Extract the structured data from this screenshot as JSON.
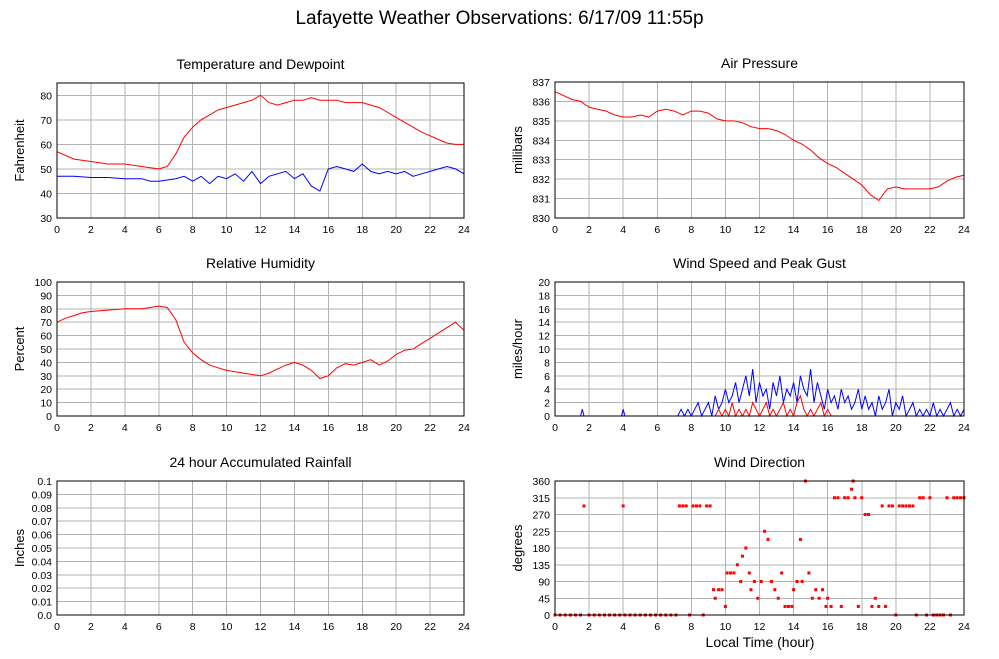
{
  "page": {
    "title": "Lafayette Weather Observations: 6/17/09 11:55p",
    "xlabel": "Local Time (hour)"
  },
  "chart_data": [
    {
      "id": "temp",
      "type": "line",
      "title": "Temperature and Dewpoint",
      "ylabel": "Fahrenheit",
      "xlim": [
        0,
        24
      ],
      "ylim": [
        30,
        85
      ],
      "xticks": [
        0,
        2,
        4,
        6,
        8,
        10,
        12,
        14,
        16,
        18,
        20,
        22,
        24
      ],
      "yticks": [
        30,
        40,
        50,
        60,
        70,
        80
      ],
      "grid": true,
      "series": [
        {
          "color": "#ff0000",
          "x": [
            0,
            1,
            2,
            3,
            4,
            5,
            5.5,
            6,
            6.5,
            7,
            7.5,
            8,
            8.5,
            9,
            9.5,
            10,
            10.5,
            11,
            11.5,
            12,
            12.5,
            13,
            13.5,
            14,
            14.5,
            15,
            15.5,
            16,
            16.5,
            17,
            17.5,
            18,
            18.5,
            19,
            19.5,
            20,
            20.5,
            21,
            21.5,
            22,
            22.5,
            23,
            23.5,
            24
          ],
          "y": [
            57,
            54,
            53,
            52,
            52,
            51,
            50.5,
            50,
            51,
            56,
            63,
            67,
            70,
            72,
            74,
            75,
            76,
            77,
            78,
            80,
            77,
            76,
            77,
            78,
            78,
            79,
            78,
            78,
            78,
            77,
            77,
            77,
            76,
            75,
            73,
            71,
            69,
            67,
            65,
            63.5,
            62,
            60.5,
            60,
            60
          ]
        },
        {
          "color": "#0000ff",
          "x": [
            0,
            1,
            2,
            3,
            4,
            5,
            5.5,
            6,
            6.5,
            7,
            7.5,
            8,
            8.5,
            9,
            9.5,
            10,
            10.5,
            11,
            11.5,
            12,
            12.5,
            13,
            13.5,
            14,
            14.5,
            15,
            15.5,
            16,
            16.5,
            17,
            17.5,
            18,
            18.5,
            19,
            19.5,
            20,
            20.5,
            21,
            21.5,
            22,
            22.5,
            23,
            23.5,
            24
          ],
          "y": [
            47,
            47,
            46.5,
            46.5,
            46,
            46,
            45,
            45,
            45.5,
            46,
            47,
            45,
            47,
            44,
            47,
            46,
            48,
            45,
            49,
            44,
            47,
            48,
            49,
            46,
            48,
            43,
            41,
            50,
            51,
            50,
            49,
            52,
            49,
            48,
            49,
            48,
            49,
            47,
            48,
            49,
            50,
            51,
            50,
            48
          ]
        }
      ]
    },
    {
      "id": "pressure",
      "type": "line",
      "title": "Air Pressure",
      "ylabel": "millibars",
      "xlim": [
        0,
        24
      ],
      "ylim": [
        830,
        837
      ],
      "xticks": [
        0,
        2,
        4,
        6,
        8,
        10,
        12,
        14,
        16,
        18,
        20,
        22,
        24
      ],
      "yticks": [
        830,
        831,
        832,
        833,
        834,
        835,
        836,
        837
      ],
      "grid": true,
      "series": [
        {
          "color": "#ff0000",
          "x": [
            0,
            0.5,
            1,
            1.5,
            2,
            2.5,
            3,
            3.5,
            4,
            4.5,
            5,
            5.5,
            6,
            6.5,
            7,
            7.5,
            8,
            8.5,
            9,
            9.5,
            10,
            10.5,
            11,
            11.5,
            12,
            12.5,
            13,
            13.5,
            14,
            14.5,
            15,
            15.5,
            16,
            16.5,
            17,
            17.5,
            18,
            18.5,
            19,
            19.5,
            20,
            20.5,
            21,
            21.5,
            22,
            22.5,
            23,
            23.5,
            24
          ],
          "y": [
            836.5,
            836.3,
            836.1,
            836.0,
            835.7,
            835.6,
            835.5,
            835.3,
            835.2,
            835.2,
            835.3,
            835.2,
            835.5,
            835.6,
            835.5,
            835.3,
            835.5,
            835.5,
            835.4,
            835.1,
            835.0,
            835.0,
            834.9,
            834.7,
            834.6,
            834.6,
            834.5,
            834.3,
            834.0,
            833.8,
            833.5,
            833.1,
            832.8,
            832.6,
            832.3,
            832.0,
            831.7,
            831.2,
            830.9,
            831.5,
            831.6,
            831.5,
            831.5,
            831.5,
            831.5,
            831.6,
            831.9,
            832.1,
            832.2
          ]
        }
      ]
    },
    {
      "id": "humidity",
      "type": "line",
      "title": "Relative Humidity",
      "ylabel": "Percent",
      "xlim": [
        0,
        24
      ],
      "ylim": [
        0,
        100
      ],
      "xticks": [
        0,
        2,
        4,
        6,
        8,
        10,
        12,
        14,
        16,
        18,
        20,
        22,
        24
      ],
      "yticks": [
        0,
        10,
        20,
        30,
        40,
        50,
        60,
        70,
        80,
        90,
        100
      ],
      "grid": true,
      "series": [
        {
          "color": "#ff0000",
          "x": [
            0,
            0.5,
            1,
            1.5,
            2,
            3,
            4,
            5,
            5.5,
            6,
            6.5,
            7,
            7.5,
            8,
            8.5,
            9,
            9.5,
            10,
            10.5,
            11,
            11.5,
            12,
            12.5,
            13,
            13.5,
            14,
            14.5,
            15,
            15.5,
            16,
            16.5,
            17,
            17.5,
            18,
            18.5,
            19,
            19.5,
            20,
            20.5,
            21,
            21.5,
            22,
            22.5,
            23,
            23.5,
            24
          ],
          "y": [
            70,
            73,
            75,
            77,
            78,
            79,
            80,
            80,
            81,
            82,
            81,
            72,
            55,
            47,
            42,
            38,
            36,
            34,
            33,
            32,
            31,
            30,
            32,
            35,
            38,
            40,
            38,
            34,
            28,
            30,
            36,
            39,
            38,
            40,
            42,
            38,
            41,
            46,
            49,
            50,
            54,
            58,
            62,
            66,
            70,
            64
          ]
        }
      ]
    },
    {
      "id": "wind",
      "type": "line",
      "title": "Wind Speed and Peak Gust",
      "ylabel": "miles/hour",
      "xlim": [
        0,
        24
      ],
      "ylim": [
        0,
        20
      ],
      "xticks": [
        0,
        2,
        4,
        6,
        8,
        10,
        12,
        14,
        16,
        18,
        20,
        22,
        24
      ],
      "yticks": [
        0,
        2,
        4,
        6,
        8,
        10,
        12,
        14,
        16,
        18,
        20
      ],
      "grid": true,
      "series": [
        {
          "color": "#0000ff",
          "x": [
            0,
            1.5,
            1.6,
            1.7,
            3.9,
            4.0,
            4.1,
            7.2,
            7.4,
            7.6,
            7.8,
            8.0,
            8.2,
            8.4,
            8.6,
            8.8,
            9.0,
            9.2,
            9.4,
            9.6,
            9.8,
            10.0,
            10.2,
            10.4,
            10.6,
            10.8,
            11.0,
            11.2,
            11.4,
            11.6,
            11.8,
            12.0,
            12.2,
            12.4,
            12.6,
            12.8,
            13.0,
            13.2,
            13.4,
            13.6,
            13.8,
            14.0,
            14.2,
            14.4,
            14.6,
            14.8,
            15.0,
            15.2,
            15.4,
            15.6,
            15.8,
            16.0,
            16.2,
            16.4,
            16.6,
            16.8,
            17.0,
            17.2,
            17.4,
            17.6,
            17.8,
            18.0,
            18.2,
            18.4,
            18.6,
            18.8,
            19.0,
            19.2,
            19.4,
            19.6,
            19.8,
            20.0,
            20.2,
            20.4,
            20.6,
            20.8,
            21.0,
            21.2,
            21.4,
            21.6,
            21.8,
            22.0,
            22.2,
            22.4,
            22.6,
            22.8,
            23.0,
            23.2,
            23.4,
            23.6,
            23.8,
            24.0
          ],
          "y": [
            0,
            0,
            1,
            0,
            0,
            1,
            0,
            0,
            1,
            0,
            1,
            0,
            1,
            2,
            0,
            1,
            2,
            0,
            3,
            1,
            2,
            4,
            2,
            3,
            5,
            2,
            4,
            6,
            3,
            7,
            2,
            5,
            3,
            4,
            1,
            5,
            3,
            6,
            2,
            4,
            3,
            5,
            2,
            6,
            4,
            3,
            7,
            2,
            5,
            3,
            1,
            4,
            2,
            3,
            1,
            4,
            2,
            3,
            1,
            2,
            4,
            1,
            3,
            1,
            2,
            0,
            3,
            1,
            2,
            4,
            0,
            2,
            1,
            3,
            0,
            1,
            2,
            0,
            1,
            0,
            1,
            0,
            2,
            0,
            1,
            0,
            1,
            2,
            0,
            1,
            0,
            1
          ]
        },
        {
          "color": "#ff0000",
          "x": [
            0,
            9.4,
            9.6,
            9.8,
            10.0,
            10.2,
            10.4,
            10.6,
            10.8,
            11.0,
            11.2,
            11.4,
            11.6,
            11.8,
            12.0,
            12.2,
            12.4,
            12.6,
            12.8,
            13.0,
            13.2,
            13.4,
            13.6,
            13.8,
            14.0,
            14.2,
            14.4,
            14.6,
            14.8,
            15.0,
            15.2,
            15.4,
            15.6,
            15.8,
            16.0,
            16.2,
            24.0
          ],
          "y": [
            0,
            0,
            1,
            0,
            1,
            0,
            2,
            0,
            1,
            0,
            1,
            0,
            2,
            1,
            0,
            1,
            2,
            0,
            1,
            0,
            1,
            2,
            0,
            1,
            0,
            2,
            3,
            1,
            0,
            1,
            0,
            1,
            2,
            0,
            1,
            0,
            0
          ]
        }
      ]
    },
    {
      "id": "rain",
      "type": "line",
      "title": "24 hour Accumulated Rainfall",
      "ylabel": "Inches",
      "xlim": [
        0,
        24
      ],
      "ylim": [
        0,
        0.1
      ],
      "xticks": [
        0,
        2,
        4,
        6,
        8,
        10,
        12,
        14,
        16,
        18,
        20,
        22,
        24
      ],
      "yticks": [
        0.0,
        0.01,
        0.02,
        0.03,
        0.04,
        0.05,
        0.06,
        0.07,
        0.08,
        0.09,
        0.1
      ],
      "ytick_labels": [
        "0.0",
        "0.01",
        "0.02",
        "0.03",
        "0.04",
        "0.05",
        "0.06",
        "0.07",
        "0.08",
        "0.09",
        "0.1"
      ],
      "grid": true,
      "series": [
        {
          "color": "#ff0000",
          "x": [
            0,
            24
          ],
          "y": [
            0,
            0
          ]
        }
      ]
    },
    {
      "id": "direction",
      "type": "scatter",
      "title": "Wind Direction",
      "ylabel": "degrees",
      "xlim": [
        0,
        24
      ],
      "ylim": [
        0,
        360
      ],
      "xticks": [
        0,
        2,
        4,
        6,
        8,
        10,
        12,
        14,
        16,
        18,
        20,
        22,
        24
      ],
      "yticks": [
        0,
        45,
        90,
        135,
        180,
        225,
        270,
        315,
        360
      ],
      "grid": true,
      "series": [
        {
          "color": "#ff0000",
          "x": [
            0,
            0.3,
            0.6,
            0.9,
            1.2,
            1.5,
            1.7,
            2.0,
            2.3,
            2.6,
            2.9,
            3.2,
            3.5,
            3.8,
            4.0,
            4.1,
            4.4,
            4.7,
            5.0,
            5.3,
            5.6,
            5.9,
            6.2,
            6.5,
            6.8,
            7.1,
            7.3,
            7.5,
            7.7,
            7.9,
            8.1,
            8.3,
            8.5,
            8.7,
            8.9,
            9.1,
            9.3,
            9.4,
            9.6,
            9.8,
            10.0,
            10.1,
            10.3,
            10.5,
            10.7,
            10.9,
            11.0,
            11.2,
            11.4,
            11.5,
            11.7,
            11.9,
            12.1,
            12.3,
            12.5,
            12.7,
            12.9,
            13.1,
            13.3,
            13.5,
            13.7,
            13.9,
            14.0,
            14.2,
            14.4,
            14.5,
            14.7,
            14.9,
            15.1,
            15.3,
            15.5,
            15.7,
            15.9,
            16.0,
            16.2,
            16.4,
            16.6,
            16.8,
            17.0,
            17.2,
            17.4,
            17.5,
            17.6,
            17.8,
            18.0,
            18.2,
            18.4,
            18.6,
            18.8,
            19.0,
            19.2,
            19.4,
            19.6,
            19.8,
            20.0,
            20.2,
            20.4,
            20.6,
            20.8,
            21.0,
            21.2,
            21.4,
            21.6,
            21.8,
            22.0,
            22.2,
            22.4,
            22.6,
            22.8,
            23.0,
            23.2,
            23.4,
            23.6,
            23.8,
            24.0
          ],
          "y": [
            0,
            0,
            0,
            0,
            0,
            0,
            293,
            0,
            0,
            0,
            0,
            0,
            0,
            0,
            293,
            0,
            0,
            0,
            0,
            0,
            0,
            0,
            0,
            0,
            0,
            0,
            293,
            293,
            293,
            0,
            293,
            293,
            293,
            0,
            293,
            293,
            68,
            45,
            68,
            68,
            23,
            113,
            113,
            113,
            135,
            90,
            158,
            180,
            113,
            68,
            90,
            45,
            90,
            225,
            203,
            90,
            68,
            45,
            113,
            23,
            23,
            23,
            68,
            90,
            203,
            90,
            360,
            113,
            45,
            68,
            45,
            68,
            23,
            45,
            23,
            315,
            315,
            23,
            315,
            315,
            338,
            360,
            315,
            23,
            315,
            270,
            270,
            23,
            45,
            23,
            293,
            23,
            293,
            293,
            0,
            293,
            293,
            293,
            293,
            293,
            0,
            315,
            315,
            0,
            315,
            0,
            0,
            0,
            0,
            315,
            0,
            315,
            315,
            315,
            315
          ]
        }
      ]
    }
  ]
}
